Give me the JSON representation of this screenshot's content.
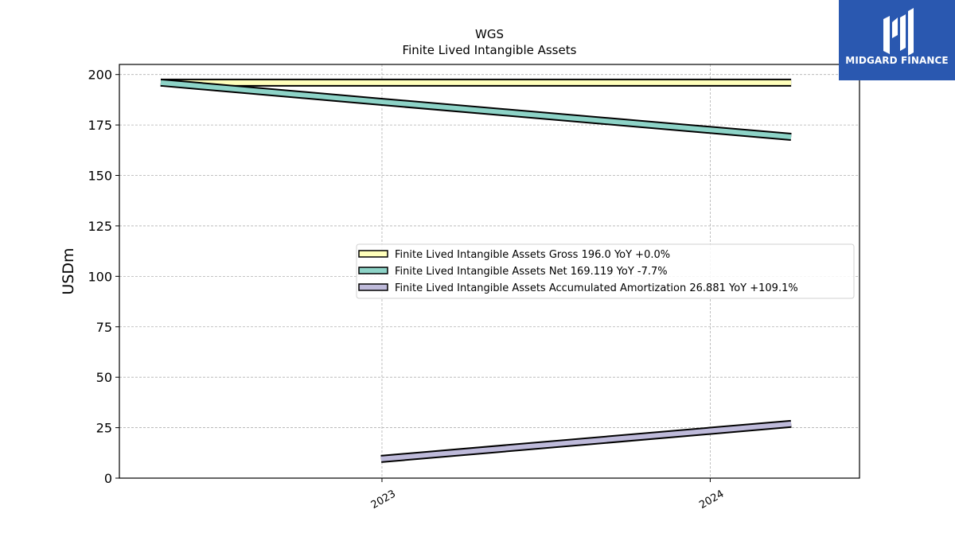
{
  "chart_data": {
    "type": "line",
    "title": "WGS",
    "subtitle": "Finite Lived Intangible Assets",
    "ylabel": "USDm",
    "ylim": [
      0,
      205
    ],
    "yticks": [
      0,
      25,
      50,
      75,
      100,
      125,
      150,
      175,
      200
    ],
    "xticks": [
      {
        "label": "2023",
        "date": "2023-01-01"
      },
      {
        "label": "2024",
        "date": "2024-01-01"
      }
    ],
    "xlim": [
      "2022-03-15",
      "2024-06-15"
    ],
    "grid": true,
    "legend_position": "center-right",
    "series": [
      {
        "name": "Finite Lived Intangible Assets Gross",
        "legend": "Finite Lived Intangible Assets Gross  196.0 YoY +0.0%",
        "color": "#ffffbb",
        "points": [
          {
            "x": "2022-04-30",
            "y": 196.0
          },
          {
            "x": "2022-12-31",
            "y": 196.0
          },
          {
            "x": "2024-03-31",
            "y": 196.0
          }
        ]
      },
      {
        "name": "Finite Lived Intangible Assets Net",
        "legend": "Finite Lived Intangible Assets Net  169.119 YoY -7.7%",
        "color": "#8dd3c7",
        "points": [
          {
            "x": "2022-04-30",
            "y": 196.0
          },
          {
            "x": "2022-12-31",
            "y": 186.5
          },
          {
            "x": "2024-03-31",
            "y": 169.119
          }
        ]
      },
      {
        "name": "Finite Lived Intangible Assets Accumulated Amortization",
        "legend": "Finite Lived Intangible Assets Accumulated Amortization  26.881 YoY +109.1%",
        "color": "#bebada",
        "points": [
          {
            "x": "2022-12-31",
            "y": 9.5
          },
          {
            "x": "2024-03-31",
            "y": 26.881
          }
        ]
      }
    ]
  },
  "logo": {
    "text": "MIDGARD FINANCE"
  }
}
